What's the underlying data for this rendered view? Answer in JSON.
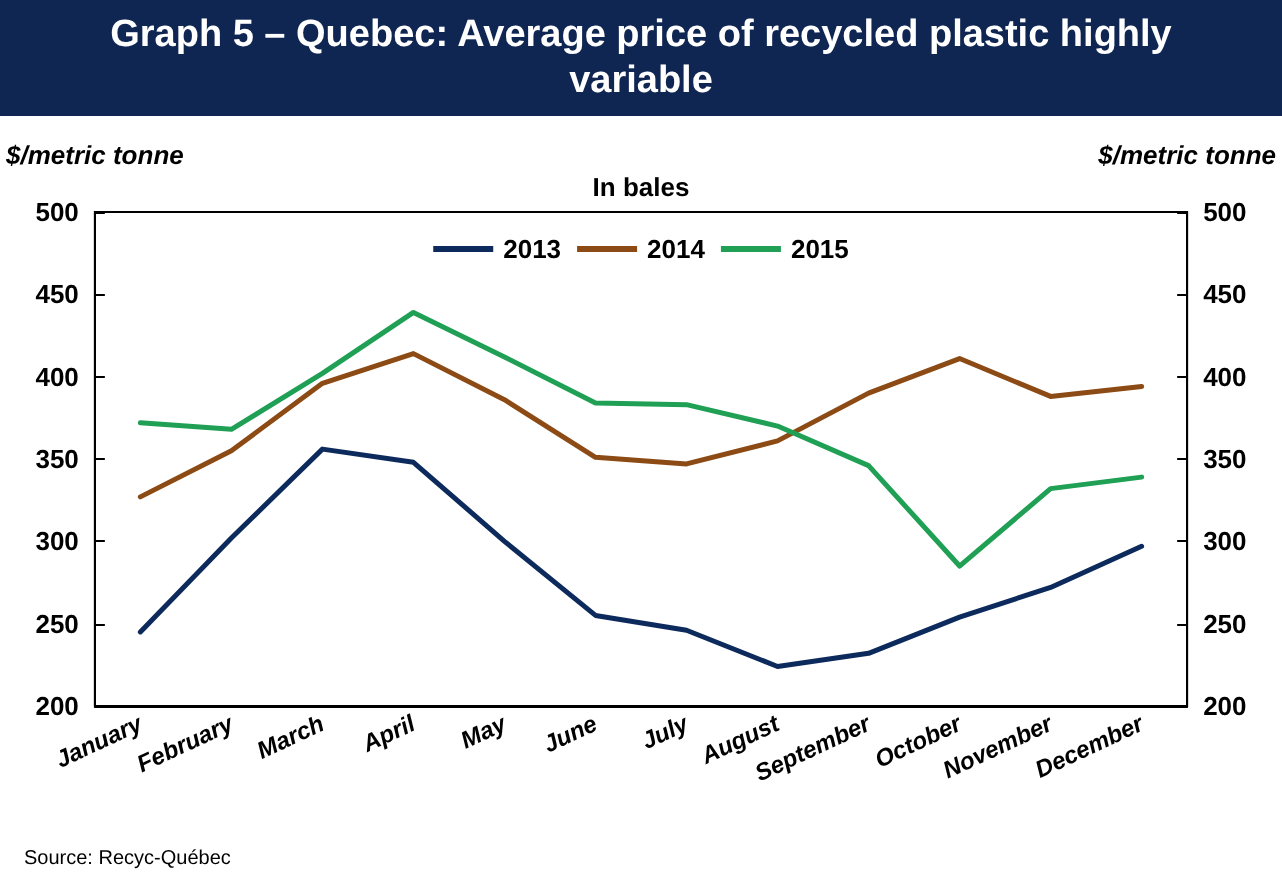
{
  "chart_data": {
    "type": "line",
    "title": "Graph 5 – Quebec: Average price of recycled plastic highly variable",
    "subtitle": "In bales",
    "ylabel": "$/metric tonne",
    "y2label": "$/metric tonne",
    "categories": [
      "January",
      "February",
      "March",
      "April",
      "May",
      "June",
      "July",
      "August",
      "September",
      "October",
      "November",
      "December"
    ],
    "series": [
      {
        "name": "2013",
        "color": "#0d2a5c",
        "values": [
          245,
          302,
          356,
          348,
          300,
          255,
          246,
          224,
          232,
          254,
          272,
          297
        ]
      },
      {
        "name": "2014",
        "color": "#8c4a14",
        "values": [
          327,
          355,
          396,
          414,
          386,
          351,
          347,
          361,
          390,
          411,
          388,
          394
        ]
      },
      {
        "name": "2015",
        "color": "#1fa055",
        "values": [
          372,
          368,
          402,
          439,
          412,
          384,
          383,
          370,
          346,
          285,
          332,
          339
        ]
      }
    ],
    "ylim": [
      200,
      500
    ],
    "yticks": [
      200,
      250,
      300,
      350,
      400,
      450,
      500
    ],
    "y2lim": [
      200,
      500
    ],
    "y2ticks": [
      200,
      250,
      300,
      350,
      400,
      450,
      500
    ],
    "grid": false,
    "legend": "top",
    "marker": "none",
    "line_style": "solid",
    "annotations": [
      "Source: Recyc-Québec"
    ]
  }
}
